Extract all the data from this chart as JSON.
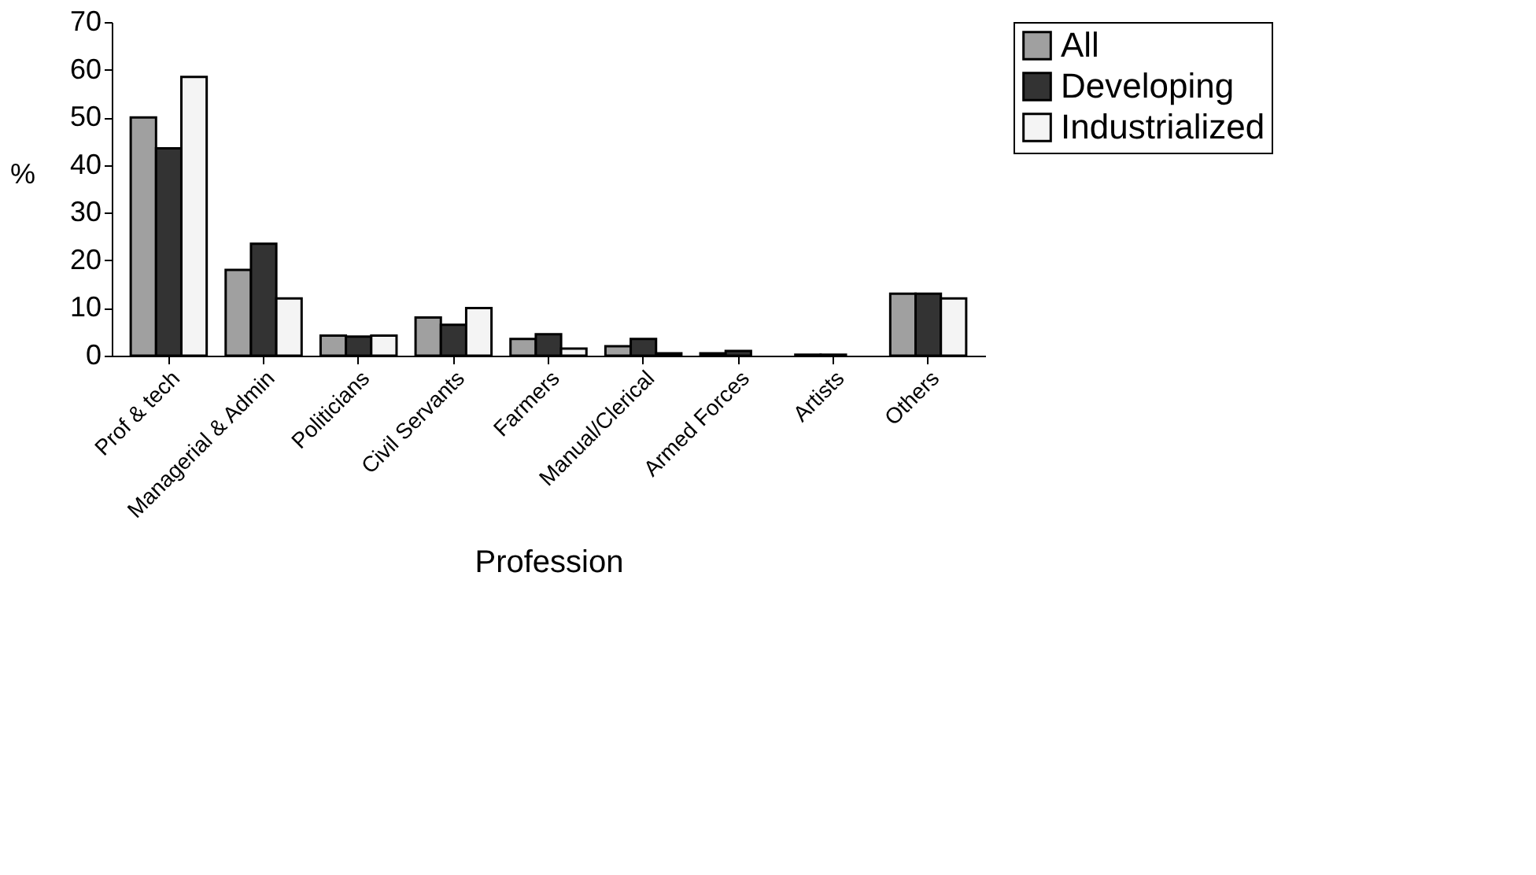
{
  "chart_data": {
    "type": "bar",
    "xlabel": "Profession",
    "ylabel": "%",
    "categories": [
      "Prof & tech",
      "Managerial & Admin",
      "Politicians",
      "Civil Servants",
      "Farmers",
      "Manual/Clerical",
      "Armed Forces",
      "Artists",
      "Others"
    ],
    "series": [
      {
        "name": "All",
        "color": "#a0a0a0",
        "values": [
          50,
          18,
          4.2,
          8,
          3.5,
          2,
          0.5,
          0.2,
          13
        ]
      },
      {
        "name": "Developing",
        "color": "#333333",
        "values": [
          43.5,
          23.5,
          4,
          6.5,
          4.5,
          3.5,
          1,
          0.2,
          13
        ]
      },
      {
        "name": "Industrialized",
        "color": "#f4f4f4",
        "values": [
          58.5,
          12,
          4.2,
          10,
          1.5,
          0.5,
          null,
          null,
          12
        ]
      }
    ],
    "ylim": [
      0,
      70
    ],
    "yticks": [
      0,
      10,
      20,
      30,
      40,
      50,
      60,
      70
    ],
    "grid": false,
    "legend": "right"
  }
}
